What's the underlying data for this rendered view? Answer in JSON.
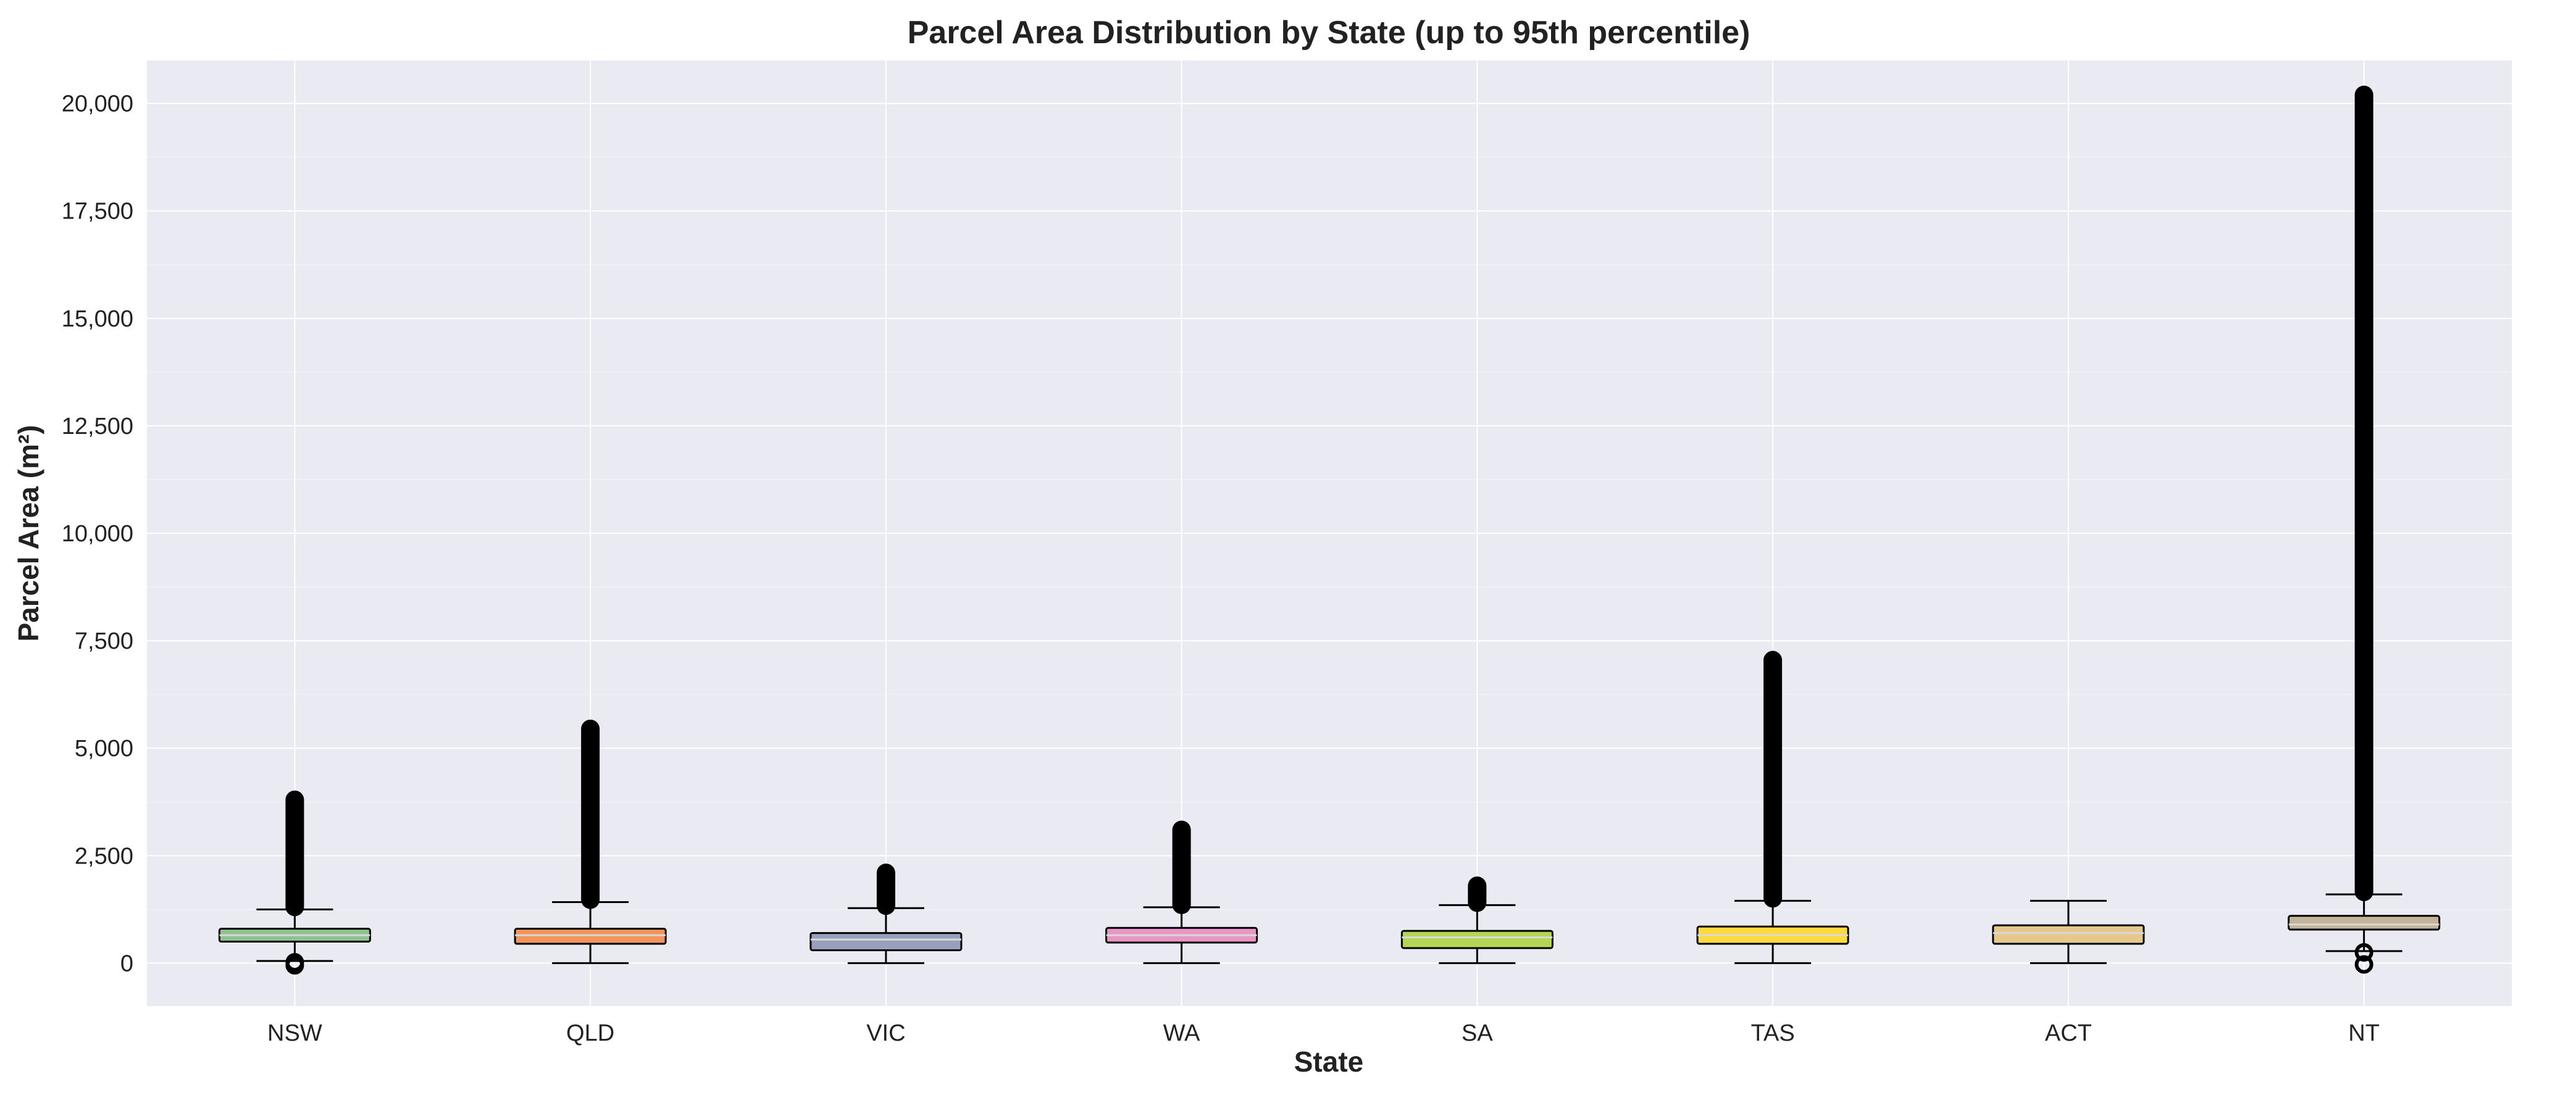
{
  "chart_data": {
    "type": "box",
    "title": "Parcel Area Distribution by State (up to 95th percentile)",
    "xlabel": "State",
    "ylabel": "Parcel Area (m²)",
    "ylim": [
      -1000,
      21000
    ],
    "yticks": [
      0,
      2500,
      5000,
      7500,
      10000,
      12500,
      15000,
      17500,
      20000
    ],
    "ytick_labels": [
      "0",
      "2,500",
      "5,000",
      "7,500",
      "10,000",
      "12,500",
      "15,000",
      "17,500",
      "20,000"
    ],
    "grid": true,
    "categories": [
      "NSW",
      "QLD",
      "VIC",
      "WA",
      "SA",
      "TAS",
      "ACT",
      "NT"
    ],
    "boxes": [
      {
        "category": "NSW",
        "whisker_low": 50,
        "q1": 500,
        "median": 650,
        "q3": 800,
        "whisker_high": 1250,
        "outliers_low": [
          -50,
          20
        ],
        "outliers_high_range": [
          1250,
          3800
        ],
        "color": "#8fc28f"
      },
      {
        "category": "QLD",
        "whisker_low": 0,
        "q1": 450,
        "median": 650,
        "q3": 800,
        "whisker_high": 1420,
        "outliers_low": [],
        "outliers_high_range": [
          1420,
          5450
        ],
        "color": "#f2955a"
      },
      {
        "category": "VIC",
        "whisker_low": 0,
        "q1": 300,
        "median": 550,
        "q3": 700,
        "whisker_high": 1280,
        "outliers_low": [],
        "outliers_high_range": [
          1280,
          2100
        ],
        "color": "#97a0bd"
      },
      {
        "category": "WA",
        "whisker_low": 0,
        "q1": 480,
        "median": 650,
        "q3": 820,
        "whisker_high": 1300,
        "outliers_low": [],
        "outliers_high_range": [
          1300,
          3100
        ],
        "color": "#e995c6"
      },
      {
        "category": "SA",
        "whisker_low": 0,
        "q1": 350,
        "median": 600,
        "q3": 750,
        "whisker_high": 1350,
        "outliers_low": [],
        "outliers_high_range": [
          1350,
          1800
        ],
        "color": "#b4d655"
      },
      {
        "category": "TAS",
        "whisker_low": 0,
        "q1": 450,
        "median": 650,
        "q3": 850,
        "whisker_high": 1450,
        "outliers_low": [],
        "outliers_high_range": [
          1450,
          7050
        ],
        "color": "#ffda3c"
      },
      {
        "category": "ACT",
        "whisker_low": 0,
        "q1": 450,
        "median": 700,
        "q3": 880,
        "whisker_high": 1450,
        "outliers_low": [],
        "outliers_high_range": [],
        "color": "#e6c88c"
      },
      {
        "category": "NT",
        "whisker_low": 280,
        "q1": 780,
        "median": 900,
        "q3": 1100,
        "whisker_high": 1600,
        "outliers_low": [
          -30,
          250
        ],
        "outliers_high_range": [
          1600,
          20200
        ],
        "color": "#c4b59a"
      }
    ]
  }
}
